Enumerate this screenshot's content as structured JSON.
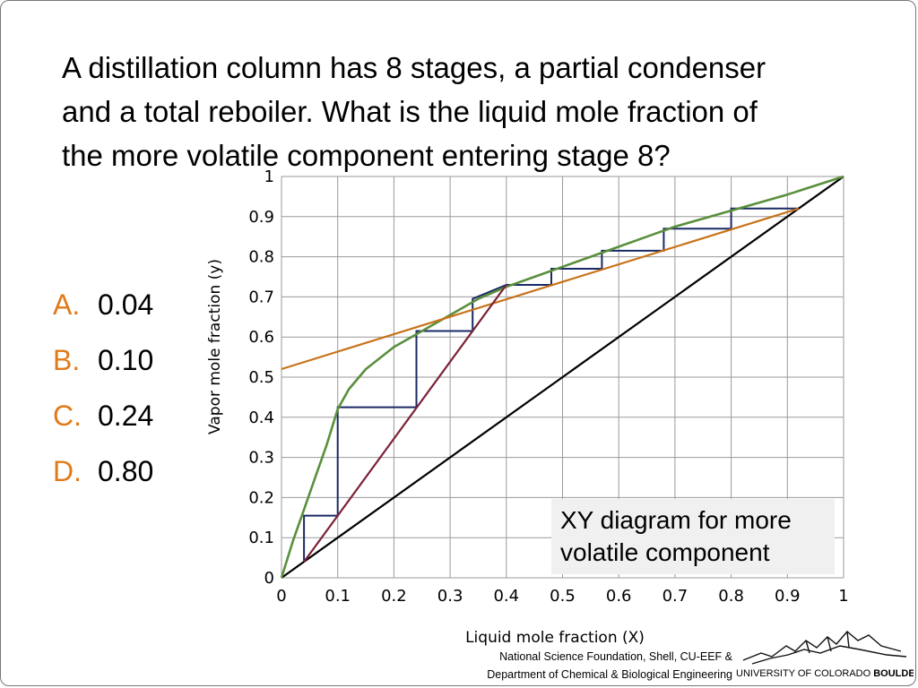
{
  "question": {
    "lines": [
      "A distillation column has 8 stages, a partial condenser",
      "and a total reboiler.  What is the liquid mole fraction of",
      "the more volatile component entering stage 8?"
    ]
  },
  "options": [
    {
      "letter": "A.",
      "value": "0.04"
    },
    {
      "letter": "B.",
      "value": "0.10"
    },
    {
      "letter": "C.",
      "value": "0.24"
    },
    {
      "letter": "D.",
      "value": "0.80"
    }
  ],
  "caption": {
    "line1": "XY diagram for more",
    "line2": "volatile component"
  },
  "credits": {
    "line1": "National Science Foundation, Shell, CU-EEF &",
    "line2": "Department of Chemical & Biological Engineering"
  },
  "logo": {
    "text_regular": "UNIVERSITY OF COLORADO ",
    "text_bold": "BOULDER"
  },
  "colors": {
    "equilibrium": "#5a8f3c",
    "rectifying": "#c8731a",
    "stripping": "#7a2236",
    "diagonal": "#000000",
    "steps": "#1a2a66",
    "grid": "#9a9a9a",
    "option_letter": "#e07b1a"
  },
  "chart_data": {
    "type": "line",
    "title": "",
    "xlabel": "Liquid mole fraction (X)",
    "ylabel": "Vapor mole fraction (y)",
    "xlim": [
      0,
      1
    ],
    "ylim": [
      0,
      1
    ],
    "grid": true,
    "xticks": [
      0,
      0.1,
      0.2,
      0.3,
      0.4,
      0.5,
      0.6,
      0.7,
      0.8,
      0.9,
      1
    ],
    "xtick_labels": [
      "0",
      "0.1",
      "0.2",
      "0.3",
      "0.4",
      "0.5",
      "0.6",
      "0.7",
      "0.8",
      "0.9",
      "1"
    ],
    "yticks": [
      0,
      0.1,
      0.2,
      0.3,
      0.4,
      0.5,
      0.6,
      0.7,
      0.8,
      0.9,
      1
    ],
    "ytick_labels": [
      "0",
      "0.1",
      "0.2",
      "0.3",
      "0.4",
      "0.5",
      "0.6",
      "0.7",
      "0.8",
      "0.9",
      "1"
    ],
    "series": [
      {
        "key": "equilibrium",
        "points": [
          [
            0,
            0
          ],
          [
            0.02,
            0.09
          ],
          [
            0.04,
            0.17
          ],
          [
            0.06,
            0.25
          ],
          [
            0.08,
            0.33
          ],
          [
            0.1,
            0.42
          ],
          [
            0.12,
            0.47
          ],
          [
            0.15,
            0.52
          ],
          [
            0.2,
            0.575
          ],
          [
            0.25,
            0.615
          ],
          [
            0.3,
            0.655
          ],
          [
            0.35,
            0.695
          ],
          [
            0.4,
            0.725
          ],
          [
            0.45,
            0.75
          ],
          [
            0.5,
            0.775
          ],
          [
            0.57,
            0.81
          ],
          [
            0.65,
            0.85
          ],
          [
            0.7,
            0.875
          ],
          [
            0.8,
            0.915
          ],
          [
            0.9,
            0.955
          ],
          [
            1,
            1
          ]
        ]
      },
      {
        "key": "rectifying",
        "points": [
          [
            0,
            0.52
          ],
          [
            0.92,
            0.92
          ]
        ]
      },
      {
        "key": "stripping",
        "points": [
          [
            0.04,
            0.04
          ],
          [
            0.4,
            0.73
          ]
        ]
      },
      {
        "key": "diagonal",
        "points": [
          [
            0,
            0
          ],
          [
            1,
            1
          ]
        ]
      }
    ],
    "steps": [
      [
        0.92,
        0.92
      ],
      [
        0.8,
        0.92
      ],
      [
        0.8,
        0.87
      ],
      [
        0.68,
        0.87
      ],
      [
        0.68,
        0.815
      ],
      [
        0.57,
        0.815
      ],
      [
        0.57,
        0.77
      ],
      [
        0.48,
        0.77
      ],
      [
        0.48,
        0.73
      ],
      [
        0.4,
        0.73
      ],
      [
        0.4,
        0.73
      ],
      [
        0.34,
        0.695
      ],
      [
        0.34,
        0.615
      ],
      [
        0.24,
        0.615
      ],
      [
        0.24,
        0.425
      ],
      [
        0.1,
        0.425
      ],
      [
        0.1,
        0.155
      ],
      [
        0.04,
        0.155
      ],
      [
        0.04,
        0.04
      ]
    ]
  }
}
